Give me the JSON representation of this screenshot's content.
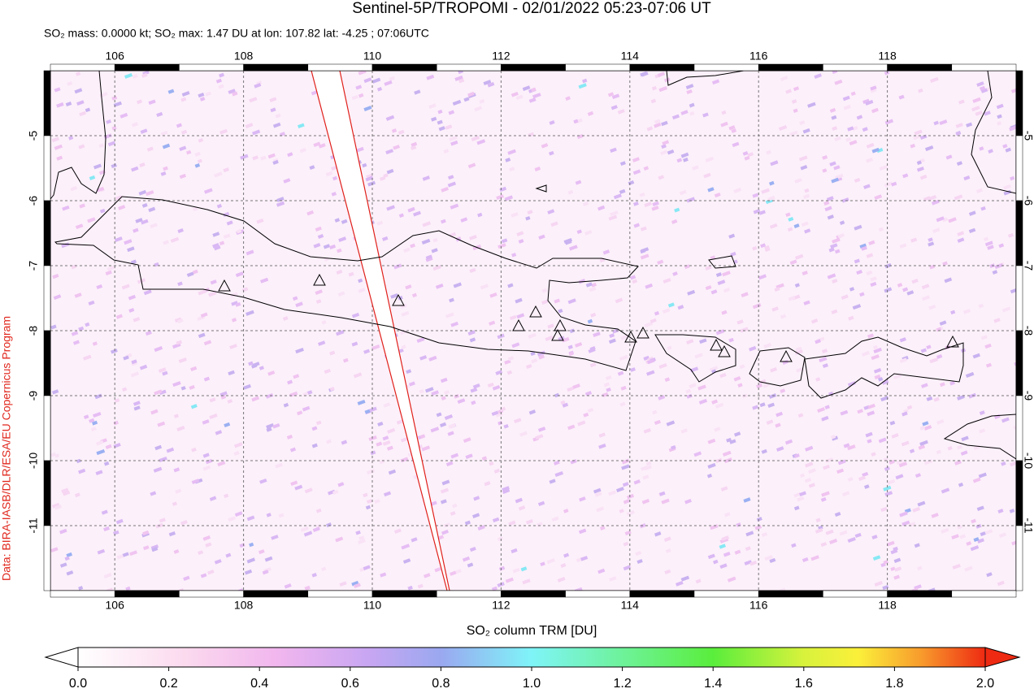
{
  "chart_data": {
    "type": "map",
    "title": "Sentinel-5P/TROPOMI - 02/01/2022 05:23-07:06 UT",
    "subtitle": "SO₂ mass: 0.0000 kt; SO₂ max: 1.47 DU at lon: 107.82 lat: -4.25 ; 07:06UTC",
    "credit": "Data: BIRA-IASB/DLR/ESA/EU Copernicus Program",
    "xlim": [
      105,
      120
    ],
    "ylim": [
      -4,
      -12
    ],
    "xticks": [
      106,
      108,
      110,
      112,
      114,
      116,
      118
    ],
    "yticks": [
      -5,
      -6,
      -7,
      -8,
      -9,
      -10,
      -11
    ],
    "grid": true,
    "colorbar": {
      "label": "SO₂ column TRM [DU]",
      "lim": [
        0,
        2
      ],
      "ticks": [
        {
          "value": 0,
          "label": "0.0"
        },
        {
          "value": 0.2,
          "label": "0.2"
        },
        {
          "value": 0.4,
          "label": "0.4"
        },
        {
          "value": 0.6,
          "label": "0.6"
        },
        {
          "value": 0.8,
          "label": "0.8"
        },
        {
          "value": 1,
          "label": "1.0"
        },
        {
          "value": 1.2,
          "label": "1.2"
        },
        {
          "value": 1.4,
          "label": "1.4"
        },
        {
          "value": 1.6,
          "label": "1.6"
        },
        {
          "value": 1.8,
          "label": "1.8"
        },
        {
          "value": 2,
          "label": "2.0"
        }
      ]
    }
  }
}
